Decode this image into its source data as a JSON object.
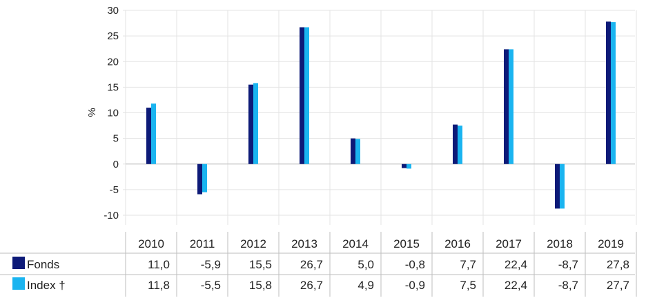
{
  "chart_data": {
    "type": "bar",
    "title": "",
    "xlabel": "",
    "ylabel": "%",
    "ylim": [
      -10,
      30
    ],
    "yticks": [
      30,
      25,
      20,
      15,
      10,
      5,
      0,
      -5,
      -10
    ],
    "categories": [
      "2010",
      "2011",
      "2012",
      "2013",
      "2014",
      "2015",
      "2016",
      "2017",
      "2018",
      "2019"
    ],
    "series": [
      {
        "name": "Fonds",
        "color": "#0d1a78",
        "values": [
          11.0,
          -5.9,
          15.5,
          26.7,
          5.0,
          -0.8,
          7.7,
          22.4,
          -8.7,
          27.8
        ],
        "labels": [
          "11,0",
          "-5,9",
          "15,5",
          "26,7",
          "5,0",
          "-0,8",
          "7,7",
          "22,4",
          "-8,7",
          "27,8"
        ]
      },
      {
        "name": "Index †",
        "color": "#1ab4f0",
        "values": [
          11.8,
          -5.5,
          15.8,
          26.7,
          4.9,
          -0.9,
          7.5,
          22.4,
          -8.7,
          27.7
        ],
        "labels": [
          "11,8",
          "-5,5",
          "15,8",
          "26,7",
          "4,9",
          "-0,9",
          "7,5",
          "22,4",
          "-8,7",
          "27,7"
        ]
      }
    ],
    "grid": true,
    "legend": "table-left"
  }
}
